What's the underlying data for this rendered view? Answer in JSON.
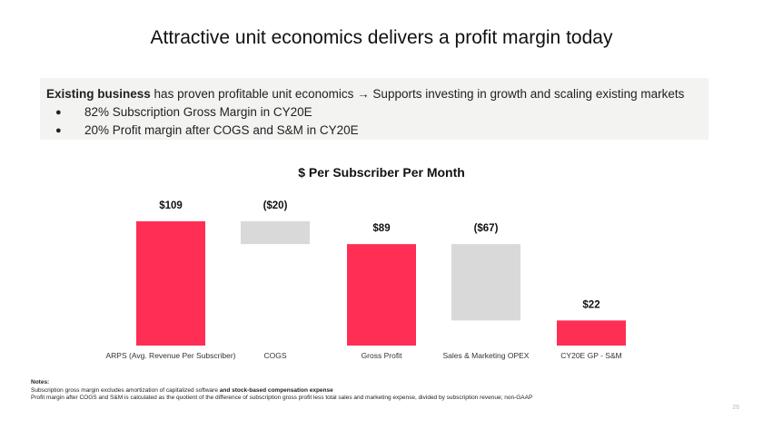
{
  "slide": {
    "title": "Attractive unit economics delivers a profit margin today",
    "page_number": "26"
  },
  "callout": {
    "lead_bold": "Existing business",
    "lead_rest": " has proven profitable unit economics → Supports investing in growth and scaling existing markets",
    "bullets": [
      "82% Subscription Gross Margin in CY20E",
      "20% Profit margin after COGS and S&M in CY20E"
    ]
  },
  "chart_data": {
    "type": "bar",
    "subtype": "waterfall",
    "title": "$ Per Subscriber Per Month",
    "categories": [
      "ARPS (Avg. Revenue Per Subscriber)",
      "COGS",
      "Gross Profit",
      "Sales & Marketing OPEX",
      "CY20E GP - S&M"
    ],
    "values": [
      109,
      -20,
      89,
      -67,
      22
    ],
    "data_labels": [
      "$109",
      "($20)",
      "$89",
      "($67)",
      "$22"
    ],
    "bar_kinds": [
      "total",
      "delta",
      "total",
      "delta",
      "total"
    ],
    "colors": {
      "total": "#ff2e55",
      "delta": "#d9d9d9"
    },
    "ylim": [
      0,
      115
    ],
    "grid": false,
    "legend": "none"
  },
  "notes": {
    "heading": "Notes:",
    "line1_plain": "Subscription gross margin excludes amortization of capitalized software ",
    "line1_bold": "and stock-based compensation expense",
    "line2": "Profit margin after COGS and S&M is calculated as the quotient of the difference of subscription gross profit less total sales and marketing expense, divided by subscription revenue; non-GAAP"
  }
}
